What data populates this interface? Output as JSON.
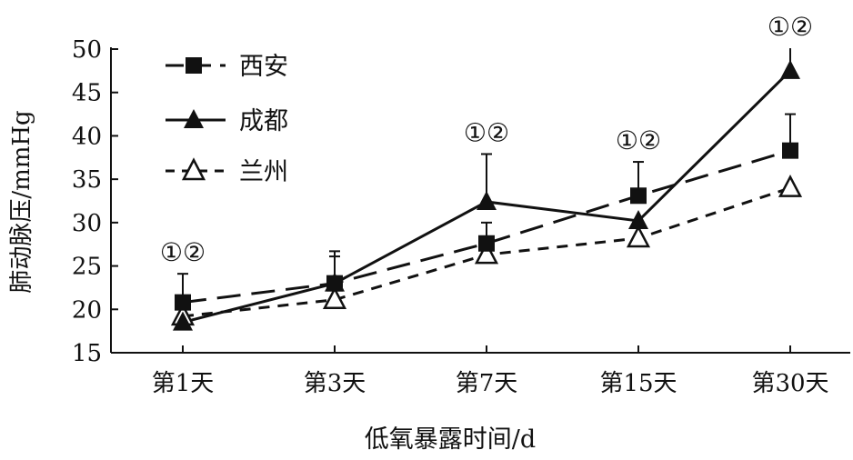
{
  "chart_data": {
    "type": "line",
    "title": "",
    "xlabel": "低氧暴露时间/d",
    "ylabel": "肺动脉压/mmHg",
    "categories": [
      "第1天",
      "第3天",
      "第7天",
      "第15天",
      "第30天"
    ],
    "ylim": [
      15,
      50
    ],
    "yticks": [
      15,
      20,
      25,
      30,
      35,
      40,
      45,
      50
    ],
    "grid": false,
    "legend_position": "top-left",
    "annotations": [
      "①②",
      null,
      "①②",
      "①②",
      "①②"
    ],
    "series": [
      {
        "name": "西安",
        "marker": "filled-square",
        "dash": "long-dash",
        "values": [
          20.8,
          23.0,
          27.6,
          33.1,
          38.3
        ],
        "error_upper": [
          24.1,
          26.7,
          30.0,
          37.0,
          42.5
        ]
      },
      {
        "name": "成都",
        "marker": "filled-triangle",
        "dash": "solid",
        "values": [
          18.5,
          23.0,
          32.4,
          30.2,
          47.5
        ],
        "error_upper": [
          null,
          26.1,
          37.9,
          null,
          50.1
        ]
      },
      {
        "name": "兰州",
        "marker": "open-triangle",
        "dash": "short-dash",
        "values": [
          19.2,
          21.1,
          26.3,
          28.2,
          34.0
        ],
        "error_upper": [
          null,
          null,
          null,
          null,
          null
        ]
      }
    ]
  }
}
